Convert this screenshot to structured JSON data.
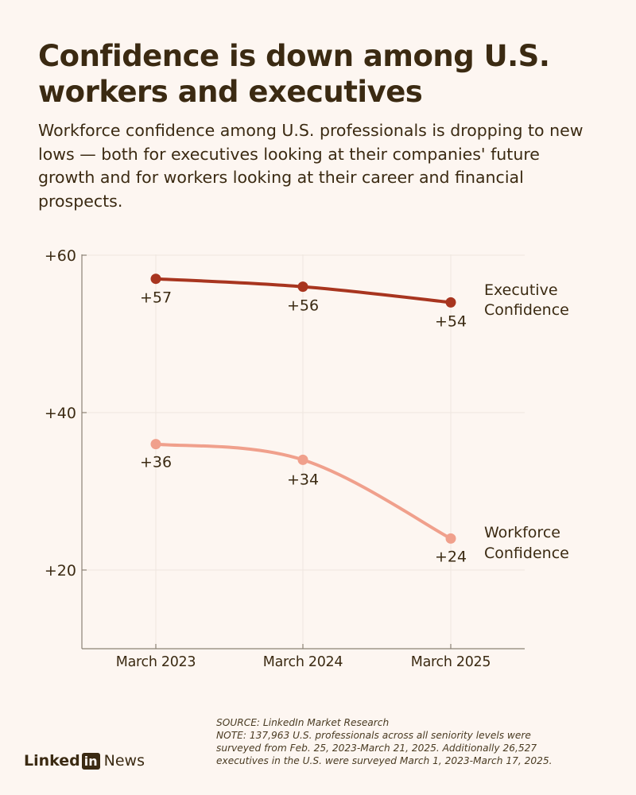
{
  "title": "Confidence is down among U.S. workers and executives",
  "subtitle": "Workforce confidence among U.S. professionals is dropping to new lows — both for executives looking at their companies' future growth and for workers looking at their career and financial prospects.",
  "colors": {
    "background": "#fdf6f1",
    "text": "#3b2a12",
    "executive": "#a8351f",
    "workforce": "#f0a08c",
    "axis": "#8c8275",
    "grid": "#efe6df"
  },
  "chart_data": {
    "type": "line",
    "categories": [
      "March 2023",
      "March 2024",
      "March 2025"
    ],
    "ylim": [
      10,
      60
    ],
    "y_ticks": [
      20,
      40,
      60
    ],
    "y_tick_labels": [
      "+20",
      "+40",
      "+60"
    ],
    "grid": true,
    "series": [
      {
        "name": "Executive Confidence",
        "name_lines": [
          "Executive",
          "Confidence"
        ],
        "values": [
          57,
          56,
          54
        ],
        "labels": [
          "+57",
          "+56",
          "+54"
        ],
        "color": "#a8351f"
      },
      {
        "name": "Workforce Confidence",
        "name_lines": [
          "Workforce",
          "Confidence"
        ],
        "values": [
          36,
          34,
          24
        ],
        "labels": [
          "+36",
          "+34",
          "+24"
        ],
        "color": "#f0a08c"
      }
    ]
  },
  "footer": {
    "brand_linked": "Linked",
    "brand_in": "in",
    "brand_news": "News",
    "source": "SOURCE: LinkedIn Market Research",
    "note_lines": [
      "NOTE: 137,963 U.S. professionals across all seniority levels were",
      "surveyed from Feb. 25, 2023-March 21, 2025. Additionally 26,527",
      "executives in the U.S. were surveyed March 1, 2023-March 17, 2025."
    ]
  }
}
